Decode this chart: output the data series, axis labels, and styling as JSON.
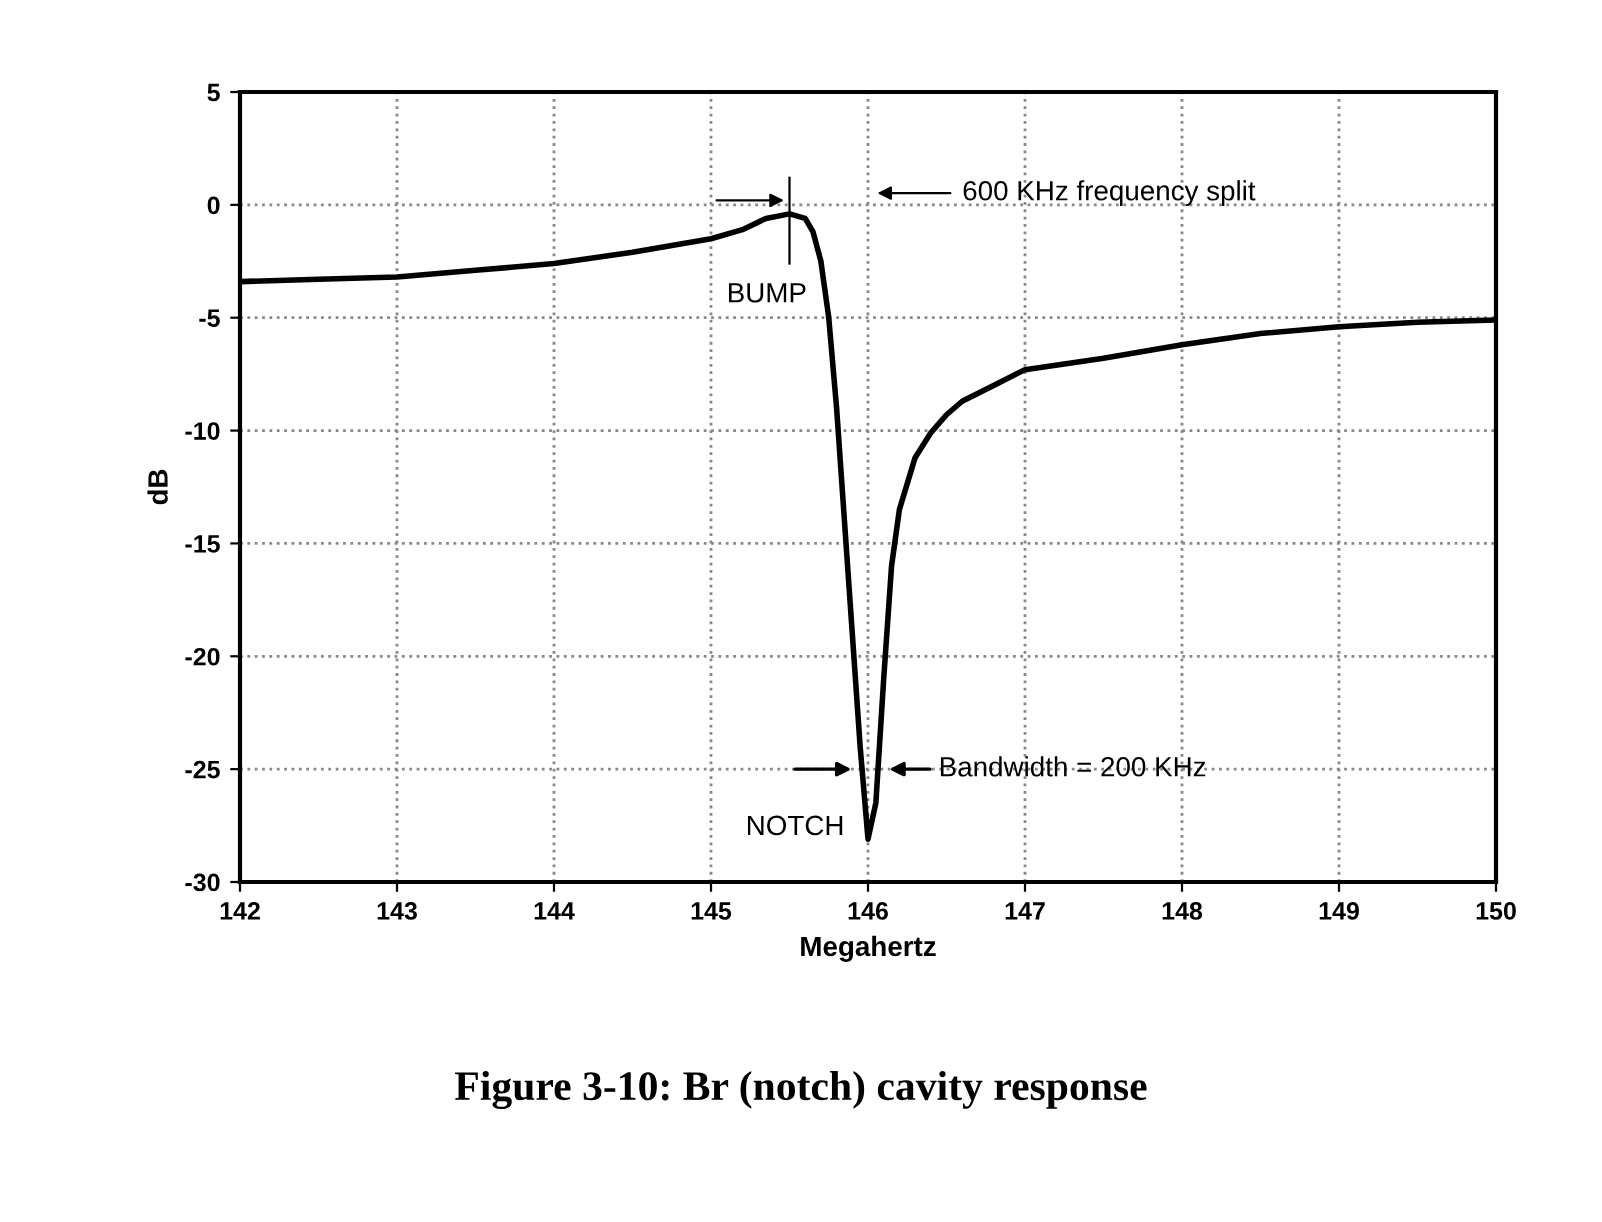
{
  "chart_data": {
    "type": "line",
    "xlabel": "Megahertz",
    "ylabel": "dB",
    "x": [
      142,
      142.5,
      143,
      143.5,
      144,
      144.5,
      145,
      145.2,
      145.35,
      145.5,
      145.6,
      145.65,
      145.7,
      145.75,
      145.8,
      145.85,
      145.9,
      145.95,
      146.0,
      146.05,
      146.1,
      146.15,
      146.2,
      146.3,
      146.4,
      146.5,
      146.6,
      146.8,
      147,
      147.5,
      148,
      148.5,
      149,
      149.5,
      150
    ],
    "values": [
      -3.4,
      -3.3,
      -3.2,
      -2.9,
      -2.6,
      -2.1,
      -1.5,
      -1.1,
      -0.6,
      -0.4,
      -0.6,
      -1.2,
      -2.5,
      -5,
      -9,
      -14,
      -19,
      -24,
      -28.1,
      -26.5,
      -21,
      -16,
      -13.5,
      -11.2,
      -10.1,
      -9.3,
      -8.7,
      -8.0,
      -7.3,
      -6.8,
      -6.2,
      -5.7,
      -5.4,
      -5.2,
      -5.1
    ],
    "color": "#000000",
    "line_style": "solid",
    "marker": "none",
    "xlim": [
      142,
      150
    ],
    "xticks": [
      142,
      143,
      144,
      145,
      146,
      147,
      148,
      149,
      150
    ],
    "ylim": [
      -30,
      5
    ],
    "yticks": [
      -30,
      -25,
      -20,
      -15,
      -10,
      -5,
      0,
      5
    ],
    "grid": true,
    "legend": false,
    "annotations": [
      {
        "text": "BUMP",
        "x": 145.5,
        "y": -0.4
      },
      "600 KHz frequency split",
      {
        "text": "NOTCH",
        "x": 146.0,
        "y": -28.1
      },
      {
        "text": "Bandwidth = 200 KHz",
        "x": 146.1,
        "y": -25
      },
      "Figure 3-10: Br (notch) cavity response"
    ]
  }
}
